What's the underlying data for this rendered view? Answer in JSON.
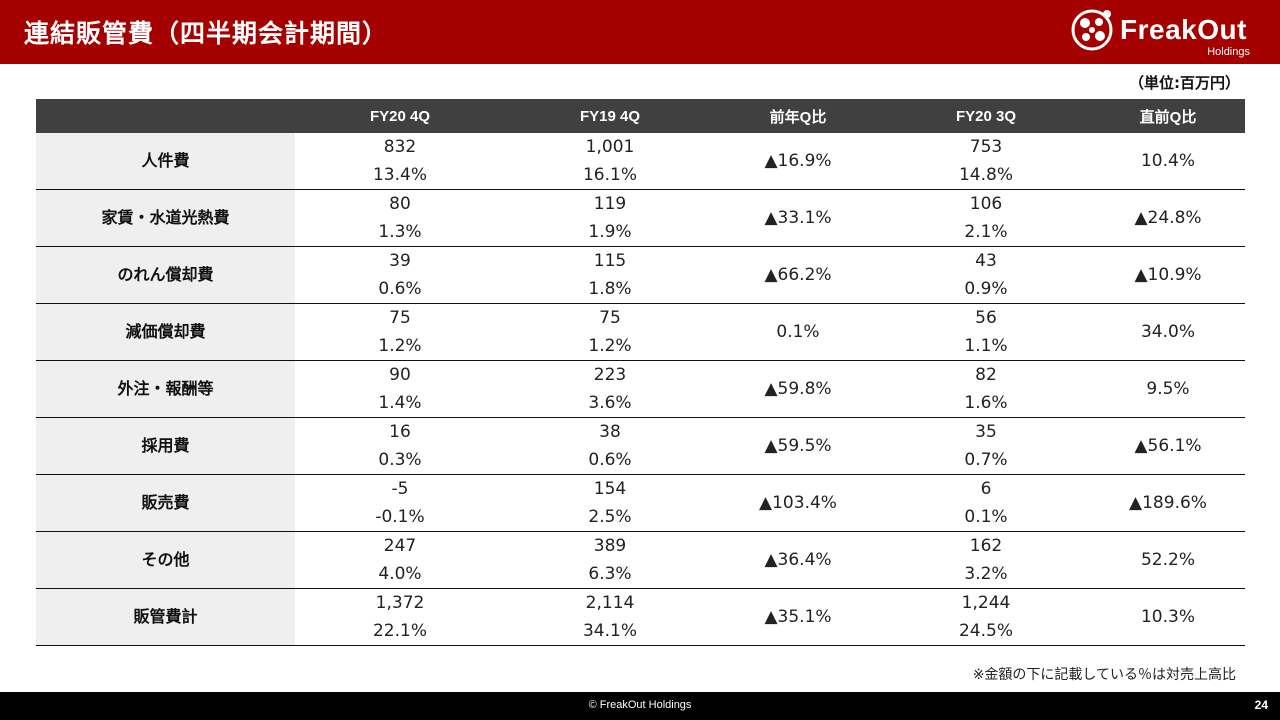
{
  "slide": {
    "title": "連結販管費（四半期会計期間）",
    "unit": "（単位:百万円）",
    "footnote": "※金額の下に記載している％は対売上高比",
    "copyright": "© FreakOut Holdings",
    "page_number": "24"
  },
  "logo": {
    "name": "FreakOut",
    "sub": "Holdings",
    "color": "#ffffff"
  },
  "colors": {
    "header_bar": "#a50000",
    "table_header": "#404040",
    "row_label_bg": "#efefef",
    "footer_bar": "#000000"
  },
  "table": {
    "columns": [
      "",
      "FY20 4Q",
      "FY19 4Q",
      "前年Q比",
      "FY20 3Q",
      "直前Q比"
    ],
    "rows": [
      {
        "label": "人件費",
        "fy20_4q": {
          "amount": "832",
          "ratio": "13.4%"
        },
        "fy19_4q": {
          "amount": "1,001",
          "ratio": "16.1%"
        },
        "yoy": "▲16.9%",
        "fy20_3q": {
          "amount": "753",
          "ratio": "14.8%"
        },
        "qoq": "10.4%"
      },
      {
        "label": "家賃・水道光熱費",
        "fy20_4q": {
          "amount": "80",
          "ratio": "1.3%"
        },
        "fy19_4q": {
          "amount": "119",
          "ratio": "1.9%"
        },
        "yoy": "▲33.1%",
        "fy20_3q": {
          "amount": "106",
          "ratio": "2.1%"
        },
        "qoq": "▲24.8%"
      },
      {
        "label": "のれん償却費",
        "fy20_4q": {
          "amount": "39",
          "ratio": "0.6%"
        },
        "fy19_4q": {
          "amount": "115",
          "ratio": "1.8%"
        },
        "yoy": "▲66.2%",
        "fy20_3q": {
          "amount": "43",
          "ratio": "0.9%"
        },
        "qoq": "▲10.9%"
      },
      {
        "label": "減価償却費",
        "fy20_4q": {
          "amount": "75",
          "ratio": "1.2%"
        },
        "fy19_4q": {
          "amount": "75",
          "ratio": "1.2%"
        },
        "yoy": "0.1%",
        "fy20_3q": {
          "amount": "56",
          "ratio": "1.1%"
        },
        "qoq": "34.0%"
      },
      {
        "label": "外注・報酬等",
        "fy20_4q": {
          "amount": "90",
          "ratio": "1.4%"
        },
        "fy19_4q": {
          "amount": "223",
          "ratio": "3.6%"
        },
        "yoy": "▲59.8%",
        "fy20_3q": {
          "amount": "82",
          "ratio": "1.6%"
        },
        "qoq": "9.5%"
      },
      {
        "label": "採用費",
        "fy20_4q": {
          "amount": "16",
          "ratio": "0.3%"
        },
        "fy19_4q": {
          "amount": "38",
          "ratio": "0.6%"
        },
        "yoy": "▲59.5%",
        "fy20_3q": {
          "amount": "35",
          "ratio": "0.7%"
        },
        "qoq": "▲56.1%"
      },
      {
        "label": "販売費",
        "fy20_4q": {
          "amount": "-5",
          "ratio": "-0.1%"
        },
        "fy19_4q": {
          "amount": "154",
          "ratio": "2.5%"
        },
        "yoy": "▲103.4%",
        "fy20_3q": {
          "amount": "6",
          "ratio": "0.1%"
        },
        "qoq": "▲189.6%"
      },
      {
        "label": "その他",
        "fy20_4q": {
          "amount": "247",
          "ratio": "4.0%"
        },
        "fy19_4q": {
          "amount": "389",
          "ratio": "6.3%"
        },
        "yoy": "▲36.4%",
        "fy20_3q": {
          "amount": "162",
          "ratio": "3.2%"
        },
        "qoq": "52.2%"
      },
      {
        "label": "販管費計",
        "fy20_4q": {
          "amount": "1,372",
          "ratio": "22.1%"
        },
        "fy19_4q": {
          "amount": "2,114",
          "ratio": "34.1%"
        },
        "yoy": "▲35.1%",
        "fy20_3q": {
          "amount": "1,244",
          "ratio": "24.5%"
        },
        "qoq": "10.3%"
      }
    ]
  }
}
